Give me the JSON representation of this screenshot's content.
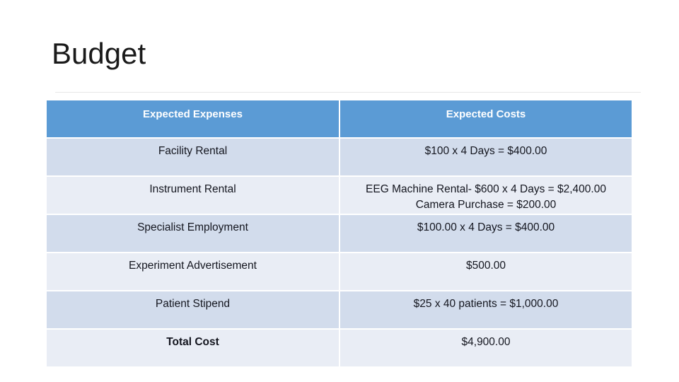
{
  "slide": {
    "title": "Budget"
  },
  "colors": {
    "header_bg": "#5B9BD5",
    "header_text": "#FFFFFF",
    "row_band_dark": "#D2DCEC",
    "row_band_light": "#E9EDF5",
    "body_text": "#14161F",
    "title_text": "#1A1A1A",
    "divider_line": "#E7E7E7",
    "slide_bg": "#FFFFFF"
  },
  "table": {
    "headers": [
      "Expected Expenses",
      "Expected Costs"
    ],
    "rows": [
      {
        "expense": "Facility Rental",
        "cost_lines": [
          "$100 x 4 Days = $400.00"
        ]
      },
      {
        "expense": "Instrument Rental",
        "cost_lines": [
          "EEG Machine Rental- $600 x 4 Days = $2,400.00",
          "Camera Purchase =  $200.00"
        ]
      },
      {
        "expense": "Specialist Employment",
        "cost_lines": [
          "$100.00 x 4 Days = $400.00"
        ]
      },
      {
        "expense": "Experiment Advertisement",
        "cost_lines": [
          "$500.00"
        ]
      },
      {
        "expense": "Patient Stipend",
        "cost_lines": [
          "$25 x 40 patients = $1,000.00"
        ]
      },
      {
        "expense": "Total Cost",
        "cost_lines": [
          "$4,900.00"
        ]
      }
    ]
  }
}
